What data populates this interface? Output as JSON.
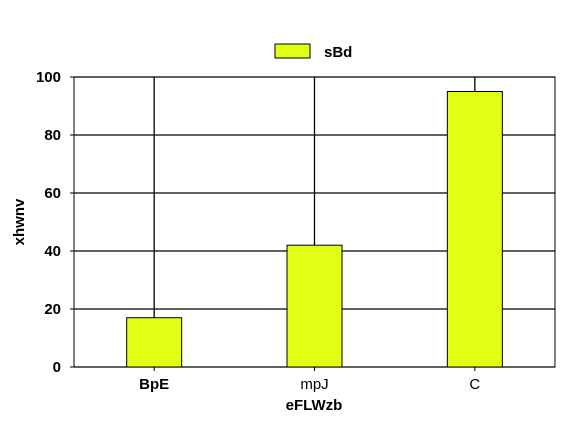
{
  "chart_data": {
    "type": "bar",
    "categories": [
      "BpE",
      "mpJ",
      "C"
    ],
    "category_bold": [
      true,
      false,
      false
    ],
    "series": [
      {
        "name": "sBd",
        "values": [
          17,
          42,
          95
        ],
        "color": "#e0ff14"
      }
    ],
    "xlabel": "eFLWzb",
    "ylabel": "xhwnv",
    "ylim": [
      0,
      100
    ],
    "yticks": [
      0,
      20,
      40,
      60,
      80,
      100
    ],
    "grid": true,
    "legend_position": "top-center"
  }
}
